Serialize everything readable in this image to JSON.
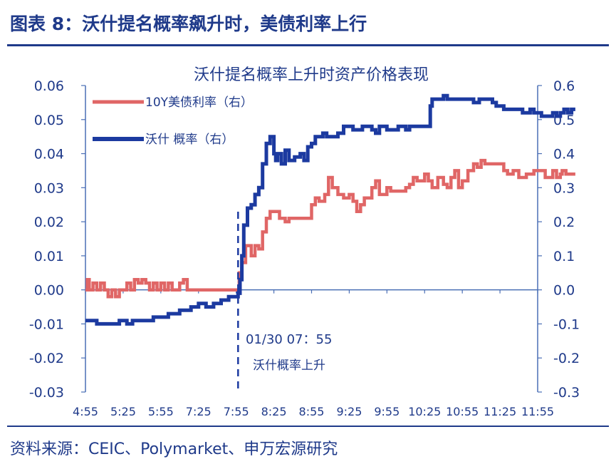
{
  "header": {
    "title": "图表 8：沃什提名概率飙升时，美债利率上行"
  },
  "footer": {
    "source": "资料来源：CEIC、Polymarket、申万宏源研究"
  },
  "colors": {
    "accent": "#1f3a8a",
    "series_prob": "#1c3aa0",
    "series_yield": "#e06666",
    "axis": "#4a6fb5"
  },
  "chart_data": {
    "type": "line",
    "title": "沃什提名概率上升时资产价格表现",
    "x_ticks": [
      "4:55",
      "5:25",
      "5:55",
      "7:25",
      "7:55",
      "8:25",
      "8:55",
      "9:25",
      "9:55",
      "10:25",
      "10:55",
      "11:25",
      "11:55"
    ],
    "y_left": {
      "ticks": [
        "0.06",
        "0.05",
        "0.04",
        "0.03",
        "0.02",
        "0.01",
        "0.00",
        "-0.01",
        "-0.02",
        "-0.03"
      ],
      "min": -0.03,
      "max": 0.06
    },
    "y_right": {
      "ticks": [
        "0.6",
        "0.5",
        "0.4",
        "0.3",
        "0.2",
        "0.1",
        "0.0",
        "-0.1",
        "-0.2",
        "-0.3"
      ],
      "min": -0.3,
      "max": 0.6
    },
    "legend": {
      "position": "top-left"
    },
    "annotation": {
      "x": 4.05,
      "line1": "01/30   07：55",
      "line2": "沃什概率上升"
    },
    "series": [
      {
        "name": "10Y美债利率（右）",
        "axis": "right",
        "color": "#e06666",
        "step": true,
        "points": [
          [
            0,
            0.0
          ],
          [
            0.05,
            0.03
          ],
          [
            0.1,
            0.0
          ],
          [
            0.2,
            0.02
          ],
          [
            0.3,
            0.0
          ],
          [
            0.4,
            0.02
          ],
          [
            0.5,
            0.0
          ],
          [
            0.6,
            -0.02
          ],
          [
            0.7,
            0.0
          ],
          [
            0.8,
            -0.02
          ],
          [
            0.9,
            0.0
          ],
          [
            1.0,
            0.0
          ],
          [
            1.1,
            0.02
          ],
          [
            1.2,
            0.0
          ],
          [
            1.3,
            0.03
          ],
          [
            1.4,
            0.02
          ],
          [
            1.5,
            0.03
          ],
          [
            1.6,
            0.02
          ],
          [
            1.7,
            0.0
          ],
          [
            1.8,
            0.02
          ],
          [
            1.9,
            0.0
          ],
          [
            2.0,
            0.02
          ],
          [
            2.1,
            0.0
          ],
          [
            2.2,
            0.02
          ],
          [
            2.3,
            0.0
          ],
          [
            2.5,
            0.02
          ],
          [
            2.6,
            0.03
          ],
          [
            2.7,
            0.0
          ],
          [
            4.05,
            0.0
          ],
          [
            4.08,
            0.05
          ],
          [
            4.15,
            0.08
          ],
          [
            4.25,
            0.13
          ],
          [
            4.4,
            0.1
          ],
          [
            4.5,
            0.13
          ],
          [
            4.6,
            0.12
          ],
          [
            4.7,
            0.17
          ],
          [
            4.8,
            0.21
          ],
          [
            4.9,
            0.23
          ],
          [
            5.1,
            0.23
          ],
          [
            5.15,
            0.21
          ],
          [
            5.3,
            0.2
          ],
          [
            5.4,
            0.21
          ],
          [
            5.6,
            0.21
          ],
          [
            5.8,
            0.21
          ],
          [
            5.9,
            0.21
          ],
          [
            6.0,
            0.25
          ],
          [
            6.1,
            0.27
          ],
          [
            6.2,
            0.26
          ],
          [
            6.35,
            0.28
          ],
          [
            6.45,
            0.33
          ],
          [
            6.55,
            0.3
          ],
          [
            6.7,
            0.28
          ],
          [
            6.85,
            0.27
          ],
          [
            7.0,
            0.28
          ],
          [
            7.1,
            0.26
          ],
          [
            7.2,
            0.23
          ],
          [
            7.3,
            0.25
          ],
          [
            7.4,
            0.27
          ],
          [
            7.6,
            0.3
          ],
          [
            7.7,
            0.32
          ],
          [
            7.8,
            0.28
          ],
          [
            8.0,
            0.3
          ],
          [
            8.1,
            0.29
          ],
          [
            8.3,
            0.29
          ],
          [
            8.5,
            0.3
          ],
          [
            8.6,
            0.31
          ],
          [
            8.7,
            0.33
          ],
          [
            8.8,
            0.32
          ],
          [
            9.0,
            0.34
          ],
          [
            9.1,
            0.32
          ],
          [
            9.2,
            0.3
          ],
          [
            9.35,
            0.33
          ],
          [
            9.5,
            0.31
          ],
          [
            9.6,
            0.3
          ],
          [
            9.7,
            0.33
          ],
          [
            9.8,
            0.35
          ],
          [
            9.9,
            0.3
          ],
          [
            10.0,
            0.32
          ],
          [
            10.15,
            0.35
          ],
          [
            10.3,
            0.37
          ],
          [
            10.4,
            0.36
          ],
          [
            10.5,
            0.38
          ],
          [
            10.6,
            0.37
          ],
          [
            10.7,
            0.37
          ],
          [
            11.0,
            0.37
          ],
          [
            11.1,
            0.35
          ],
          [
            11.2,
            0.34
          ],
          [
            11.35,
            0.35
          ],
          [
            11.5,
            0.33
          ],
          [
            11.7,
            0.34
          ],
          [
            11.9,
            0.35
          ],
          [
            12.0,
            0.35
          ],
          [
            12.2,
            0.33
          ],
          [
            12.4,
            0.35
          ],
          [
            12.5,
            0.33
          ],
          [
            12.6,
            0.34
          ],
          [
            12.65,
            0.35
          ],
          [
            12.75,
            0.34
          ],
          [
            12.85,
            0.34
          ],
          [
            12.9,
            0.34
          ],
          [
            13.0,
            0.34
          ]
        ]
      },
      {
        "name": "沃什 概率（右）",
        "axis": "right",
        "color": "#1c3aa0",
        "step": true,
        "points": [
          [
            0,
            -0.09
          ],
          [
            0.3,
            -0.1
          ],
          [
            0.6,
            -0.1
          ],
          [
            0.9,
            -0.09
          ],
          [
            1.1,
            -0.1
          ],
          [
            1.25,
            -0.09
          ],
          [
            1.5,
            -0.09
          ],
          [
            1.8,
            -0.08
          ],
          [
            2.2,
            -0.07
          ],
          [
            2.5,
            -0.06
          ],
          [
            2.8,
            -0.05
          ],
          [
            3.0,
            -0.04
          ],
          [
            3.2,
            -0.05
          ],
          [
            3.4,
            -0.04
          ],
          [
            3.6,
            -0.03
          ],
          [
            3.8,
            -0.02
          ],
          [
            4.0,
            -0.02
          ],
          [
            4.05,
            -0.01
          ],
          [
            4.1,
            0.03
          ],
          [
            4.15,
            0.1
          ],
          [
            4.2,
            0.19
          ],
          [
            4.3,
            0.24
          ],
          [
            4.4,
            0.25
          ],
          [
            4.5,
            0.28
          ],
          [
            4.6,
            0.3
          ],
          [
            4.7,
            0.37
          ],
          [
            4.8,
            0.43
          ],
          [
            4.9,
            0.45
          ],
          [
            5.0,
            0.4
          ],
          [
            5.05,
            0.38
          ],
          [
            5.1,
            0.4
          ],
          [
            5.2,
            0.37
          ],
          [
            5.3,
            0.41
          ],
          [
            5.4,
            0.38
          ],
          [
            5.55,
            0.39
          ],
          [
            5.7,
            0.4
          ],
          [
            5.8,
            0.38
          ],
          [
            5.9,
            0.42
          ],
          [
            6.0,
            0.43
          ],
          [
            6.1,
            0.45
          ],
          [
            6.3,
            0.46
          ],
          [
            6.4,
            0.45
          ],
          [
            6.55,
            0.45
          ],
          [
            6.7,
            0.46
          ],
          [
            6.85,
            0.48
          ],
          [
            7.0,
            0.48
          ],
          [
            7.1,
            0.47
          ],
          [
            7.2,
            0.47
          ],
          [
            7.35,
            0.48
          ],
          [
            7.6,
            0.47
          ],
          [
            7.7,
            0.46
          ],
          [
            7.8,
            0.48
          ],
          [
            8.0,
            0.47
          ],
          [
            8.1,
            0.47
          ],
          [
            8.3,
            0.48
          ],
          [
            8.5,
            0.47
          ],
          [
            8.6,
            0.48
          ],
          [
            8.8,
            0.48
          ],
          [
            9.05,
            0.48
          ],
          [
            9.15,
            0.54
          ],
          [
            9.2,
            0.56
          ],
          [
            9.35,
            0.56
          ],
          [
            9.5,
            0.57
          ],
          [
            9.6,
            0.56
          ],
          [
            9.8,
            0.56
          ],
          [
            10.0,
            0.56
          ],
          [
            10.2,
            0.56
          ],
          [
            10.3,
            0.55
          ],
          [
            10.45,
            0.56
          ],
          [
            10.6,
            0.56
          ],
          [
            10.8,
            0.55
          ],
          [
            10.9,
            0.54
          ],
          [
            11.0,
            0.54
          ],
          [
            11.1,
            0.53
          ],
          [
            11.3,
            0.53
          ],
          [
            11.5,
            0.53
          ],
          [
            11.6,
            0.52
          ],
          [
            11.8,
            0.53
          ],
          [
            11.9,
            0.52
          ],
          [
            12.0,
            0.52
          ],
          [
            12.1,
            0.51
          ],
          [
            12.3,
            0.51
          ],
          [
            12.4,
            0.52
          ],
          [
            12.5,
            0.51
          ],
          [
            12.6,
            0.52
          ],
          [
            12.7,
            0.53
          ],
          [
            12.8,
            0.52
          ],
          [
            12.9,
            0.53
          ],
          [
            13.0,
            0.53
          ]
        ]
      }
    ]
  }
}
